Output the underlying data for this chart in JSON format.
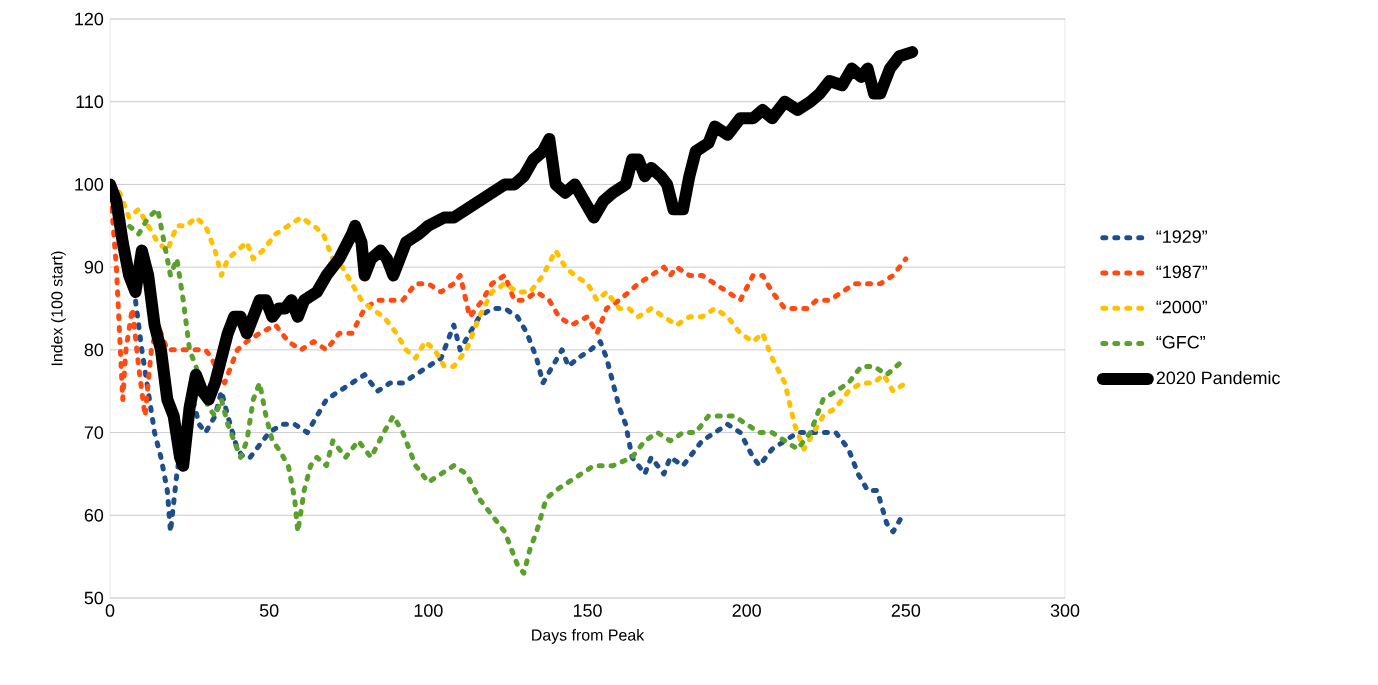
{
  "chart_data": {
    "type": "line",
    "xlabel": "Days from Peak",
    "ylabel": "Index (100 start)",
    "xlim": [
      0,
      300
    ],
    "ylim": [
      50,
      120
    ],
    "xticks": [
      0,
      50,
      100,
      150,
      200,
      250,
      300
    ],
    "yticks": [
      50,
      60,
      70,
      80,
      90,
      100,
      110,
      120
    ],
    "grid": "y",
    "legend": "right",
    "series": [
      {
        "name": "“1929”",
        "color": "#1f4e8c",
        "line_style": "dashed",
        "x": [
          0,
          5,
          8,
          10,
          12,
          14,
          16,
          18,
          19,
          21,
          23,
          26,
          28,
          30,
          33,
          35,
          37,
          40,
          42,
          44,
          46,
          50,
          54,
          58,
          62,
          65,
          68,
          72,
          76,
          80,
          84,
          88,
          92,
          96,
          100,
          104,
          108,
          110,
          113,
          116,
          120,
          124,
          128,
          131,
          134,
          136,
          139,
          142,
          144,
          147,
          151,
          154,
          156,
          158,
          160,
          162,
          164,
          166,
          168,
          170,
          172,
          174,
          176,
          180,
          182,
          186,
          190,
          194,
          198,
          202,
          204,
          208,
          212,
          216,
          220,
          224,
          228,
          232,
          235,
          238,
          241,
          244,
          246,
          249,
          250
        ],
        "values": [
          100,
          90,
          86,
          80,
          75,
          70,
          67,
          63,
          58,
          65,
          70,
          74,
          71,
          70,
          72,
          75,
          72,
          68,
          67,
          67,
          68,
          70,
          71,
          71,
          70,
          72,
          74,
          75,
          76,
          77,
          75,
          76,
          76,
          77,
          78,
          79,
          83,
          80,
          82,
          84,
          85,
          85,
          84,
          82,
          79,
          76,
          78,
          80,
          78,
          79,
          80,
          81,
          79,
          76,
          73,
          71,
          67,
          66,
          65,
          67,
          66,
          65,
          67,
          66,
          67,
          69,
          70,
          71,
          70,
          67,
          66,
          68,
          69,
          70,
          70,
          70,
          70,
          68,
          65,
          63,
          63,
          59,
          58,
          60,
          60
        ]
      },
      {
        "name": "“1987”",
        "color": "#ff4b12",
        "line_style": "dashed",
        "x": [
          0,
          2,
          3,
          4,
          5,
          7,
          9,
          11,
          13,
          15,
          18,
          20,
          24,
          27,
          30,
          32,
          34,
          36,
          38,
          40,
          43,
          47,
          52,
          56,
          60,
          64,
          68,
          72,
          76,
          80,
          84,
          88,
          92,
          96,
          100,
          104,
          108,
          110,
          113,
          117,
          120,
          124,
          127,
          130,
          134,
          138,
          141,
          145,
          150,
          153,
          156,
          160,
          163,
          166,
          170,
          174,
          176,
          178,
          182,
          186,
          190,
          194,
          198,
          202,
          205,
          208,
          212,
          215,
          219,
          222,
          226,
          230,
          234,
          238,
          242,
          246,
          250
        ],
        "values": [
          100,
          90,
          82,
          74,
          80,
          85,
          78,
          72,
          80,
          83,
          80,
          80,
          80,
          80,
          80,
          79,
          77,
          76,
          78,
          80,
          81,
          82,
          83,
          81,
          80,
          81,
          80,
          82,
          82,
          85,
          86,
          86,
          86,
          88,
          88,
          87,
          88,
          89,
          84,
          86,
          88,
          89,
          86,
          86,
          87,
          86,
          84,
          83,
          84,
          82,
          85,
          86,
          87,
          88,
          89,
          90,
          89,
          90,
          89,
          89,
          88,
          87,
          86,
          89,
          89,
          87,
          85,
          85,
          85,
          86,
          86,
          87,
          88,
          88,
          88,
          89,
          91
        ]
      },
      {
        "name": "“2000”",
        "color": "#ffc000",
        "line_style": "dashed",
        "x": [
          0,
          3,
          6,
          9,
          12,
          15,
          18,
          21,
          24,
          27,
          30,
          33,
          35,
          37,
          40,
          43,
          45,
          48,
          52,
          56,
          60,
          64,
          67,
          70,
          73,
          76,
          79,
          82,
          86,
          90,
          93,
          96,
          99,
          102,
          105,
          108,
          112,
          116,
          120,
          124,
          128,
          132,
          136,
          140,
          143,
          146,
          150,
          153,
          156,
          160,
          163,
          166,
          170,
          174,
          178,
          182,
          186,
          190,
          194,
          198,
          202,
          205,
          208,
          212,
          215,
          218,
          221,
          224,
          228,
          232,
          236,
          240,
          243,
          246,
          250
        ],
        "values": [
          100,
          99,
          96,
          97,
          95,
          93,
          92,
          95,
          95,
          96,
          95,
          92,
          89,
          91,
          92,
          93,
          91,
          92,
          94,
          95,
          96,
          95,
          94,
          91,
          90,
          88,
          86,
          85,
          84,
          82,
          80,
          79,
          81,
          80,
          78,
          78,
          80,
          84,
          87,
          88,
          87,
          87,
          89,
          92,
          90,
          89,
          88,
          86,
          87,
          85,
          85,
          84,
          85,
          84,
          83,
          84,
          84,
          85,
          84,
          82,
          81,
          82,
          79,
          76,
          71,
          68,
          70,
          72,
          73,
          75,
          76,
          76,
          77,
          75,
          76
        ]
      },
      {
        "name": "“GFC”",
        "color": "#5aa02c",
        "line_style": "dashed",
        "x": [
          0,
          3,
          6,
          9,
          12,
          15,
          17,
          19,
          21,
          23,
          25,
          27,
          29,
          31,
          33,
          35,
          37,
          39,
          41,
          43,
          45,
          47,
          49,
          51,
          53,
          56,
          58,
          59,
          61,
          63,
          65,
          68,
          70,
          74,
          78,
          82,
          86,
          89,
          92,
          96,
          100,
          104,
          108,
          112,
          116,
          120,
          124,
          128,
          130,
          132,
          134,
          137,
          140,
          144,
          148,
          152,
          158,
          164,
          168,
          172,
          176,
          180,
          184,
          188,
          192,
          196,
          200,
          204,
          208,
          212,
          216,
          220,
          224,
          228,
          232,
          236,
          240,
          244,
          247,
          250
        ],
        "values": [
          100,
          96,
          95,
          94,
          96,
          97,
          93,
          89,
          91,
          86,
          80,
          78,
          75,
          73,
          72,
          74,
          71,
          69,
          67,
          69,
          74,
          76,
          72,
          69,
          68,
          66,
          62,
          58,
          63,
          66,
          67,
          66,
          69,
          67,
          69,
          67,
          70,
          72,
          70,
          66,
          64,
          65,
          66,
          65,
          62,
          60,
          58,
          54,
          53,
          56,
          58,
          62,
          63,
          64,
          65,
          66,
          66,
          67,
          69,
          70,
          69,
          70,
          70,
          72,
          72,
          72,
          71,
          70,
          70,
          69,
          68,
          70,
          74,
          75,
          76,
          78,
          78,
          77,
          78,
          79
        ]
      },
      {
        "name": "2020 Pandemic",
        "color": "#000000",
        "line_style": "solid",
        "x": [
          0,
          2,
          4,
          6,
          8,
          10,
          12,
          14,
          16,
          18,
          20,
          22,
          23,
          25,
          27,
          29,
          31,
          33,
          35,
          37,
          39,
          41,
          43,
          45,
          47,
          49,
          51,
          53,
          55,
          57,
          59,
          61,
          65,
          68,
          72,
          76,
          77,
          79,
          80,
          82,
          85,
          87,
          89,
          91,
          93,
          97,
          100,
          105,
          108,
          112,
          116,
          120,
          124,
          127,
          130,
          133,
          136,
          138,
          140,
          143,
          146,
          149,
          152,
          155,
          158,
          162,
          164,
          166,
          168,
          170,
          173,
          175,
          177,
          180,
          182,
          184,
          188,
          190,
          194,
          198,
          202,
          205,
          208,
          212,
          216,
          220,
          223,
          226,
          230,
          233,
          236,
          238,
          240,
          242,
          245,
          248,
          252
        ],
        "values": [
          100,
          98,
          93,
          89,
          87,
          92,
          89,
          83,
          80,
          74,
          72,
          67,
          66,
          73,
          77,
          75,
          74,
          76,
          79,
          82,
          84,
          84,
          82,
          84,
          86,
          86,
          84,
          85,
          85,
          86,
          84,
          86,
          87,
          89,
          91,
          94,
          95,
          93,
          89,
          91,
          92,
          91,
          89,
          91,
          93,
          94,
          95,
          96,
          96,
          97,
          98,
          99,
          100,
          100,
          101,
          103,
          104,
          105.5,
          100,
          99,
          100,
          98,
          96,
          98,
          99,
          100,
          103,
          103,
          101,
          102,
          101,
          100,
          97,
          97,
          101,
          104,
          105,
          107,
          106,
          108,
          108,
          109,
          108,
          110,
          109,
          110,
          111,
          112.5,
          112,
          114,
          113,
          114,
          111,
          111,
          114,
          115.5,
          116
        ]
      }
    ]
  }
}
